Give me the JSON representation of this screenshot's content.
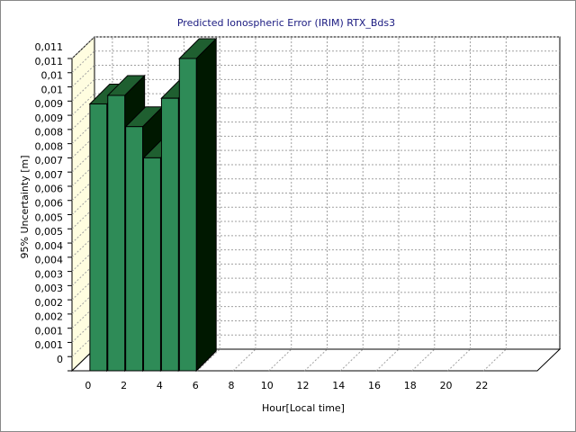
{
  "chart_data": {
    "type": "bar3d",
    "title": "Predicted Ionospheric Error (IRIM) RTX_Bds3",
    "xlabel": "Hour[Local time]",
    "ylabel": "95% Uncertainty [m]",
    "x": [
      0,
      1,
      2,
      3,
      4,
      5
    ],
    "values": [
      0.0094,
      0.0097,
      0.0086,
      0.0075,
      0.0096,
      0.011
    ],
    "color": "#2e8b57",
    "xlim": [
      -1,
      25
    ],
    "xticks": [
      0,
      2,
      4,
      6,
      8,
      10,
      12,
      14,
      16,
      18,
      20,
      22
    ],
    "ylim": [
      0,
      0.011
    ],
    "yticks": [
      0,
      {
        "value": 0.0005,
        "label": "0,001"
      },
      {
        "value": 0.001,
        "label": "0,001"
      },
      {
        "value": 0.0015,
        "label": "0,002"
      },
      {
        "value": 0.002,
        "label": "0,002"
      },
      {
        "value": 0.0025,
        "label": "0,003"
      },
      {
        "value": 0.003,
        "label": "0,003"
      },
      {
        "value": 0.0035,
        "label": "0,004"
      },
      {
        "value": 0.004,
        "label": "0,004"
      },
      {
        "value": 0.0045,
        "label": "0,005"
      },
      {
        "value": 0.005,
        "label": "0,005"
      },
      {
        "value": 0.0055,
        "label": "0,006"
      },
      {
        "value": 0.006,
        "label": "0,006"
      },
      {
        "value": 0.0065,
        "label": "0,007"
      },
      {
        "value": 0.007,
        "label": "0,007"
      },
      {
        "value": 0.0075,
        "label": "0,008"
      },
      {
        "value": 0.008,
        "label": "0,008"
      },
      {
        "value": 0.0085,
        "label": "0,009"
      },
      {
        "value": 0.009,
        "label": "0,009"
      },
      {
        "value": 0.0095,
        "label": "0,01"
      },
      {
        "value": 0.01,
        "label": "0,01"
      },
      {
        "value": 0.0105,
        "label": "0,011"
      },
      {
        "value": 0.011,
        "label": "0,011"
      }
    ],
    "grid": true
  }
}
